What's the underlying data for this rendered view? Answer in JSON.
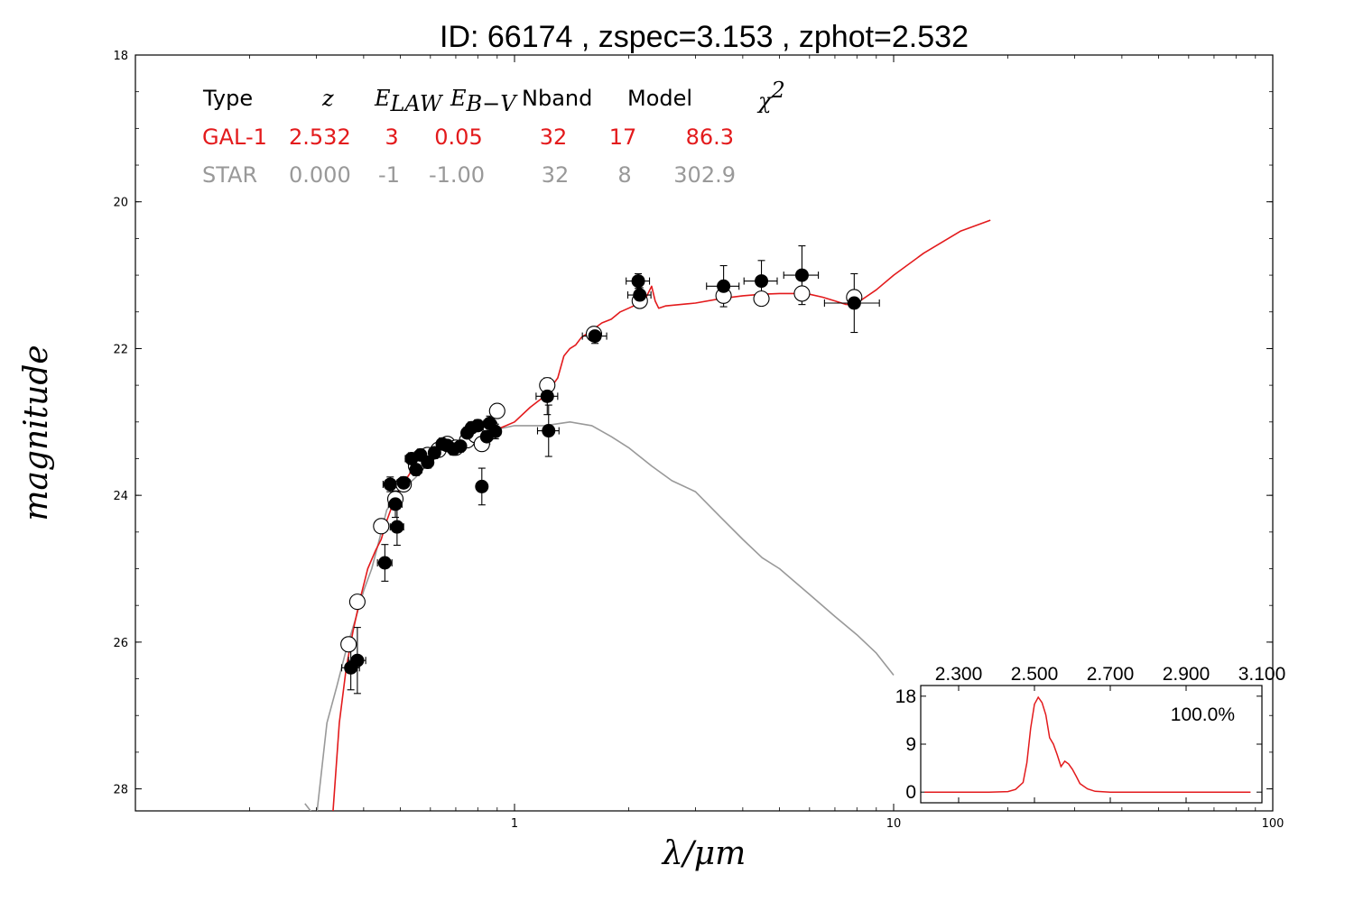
{
  "title": "ID:  66174 , zspec=3.153 , zphot=2.532",
  "colors": {
    "gal": "#e31a1c",
    "star": "#999999",
    "axis": "#000000"
  },
  "legend": {
    "headers": {
      "type": "Type",
      "z": "z",
      "elaw": "E",
      "elaw_sub": "LAW",
      "ebv": "E",
      "ebv_sub": "B−V",
      "nband": "Nband",
      "model": "Model",
      "chi": "χ",
      "chi_sup": "2"
    },
    "rows": [
      {
        "type": "GAL-1",
        "z": "2.532",
        "elaw": "3",
        "ebv": "0.05",
        "nband": "32",
        "model": "17",
        "chi2": "86.3",
        "color": "#e31a1c"
      },
      {
        "type": "STAR",
        "z": "0.000",
        "elaw": "-1",
        "ebv": "-1.00",
        "nband": "32",
        "model": "8",
        "chi2": "302.9",
        "color": "#999999"
      }
    ]
  },
  "chart_data": [
    {
      "type": "scatter",
      "title": "ID:  66174 , zspec=3.153 , zphot=2.532",
      "xlabel": "λ/μm",
      "ylabel": "magnitude",
      "xscale": "log",
      "xlim": [
        0.1,
        100
      ],
      "ylim": [
        28.3,
        18
      ],
      "y_inverted": true,
      "xticks": [
        1,
        10,
        100
      ],
      "xtick_labels": [
        "1",
        "10",
        "100"
      ],
      "yticks": [
        18,
        20,
        22,
        24,
        26,
        28
      ],
      "ytick_labels": [
        "18",
        "20",
        "22",
        "24",
        "26",
        "28"
      ],
      "series": [
        {
          "name": "GAL-1",
          "kind": "line",
          "color": "#e31a1c",
          "x": [
            0.33,
            0.345,
            0.36,
            0.375,
            0.39,
            0.41,
            0.43,
            0.445,
            0.46,
            0.475,
            0.5,
            0.53,
            0.56,
            0.6,
            0.65,
            0.7,
            0.75,
            0.8,
            0.85,
            0.9,
            0.95,
            1.0,
            1.1,
            1.2,
            1.3,
            1.35,
            1.4,
            1.45,
            1.5,
            1.55,
            1.6,
            1.7,
            1.8,
            1.9,
            2.0,
            2.1,
            2.2,
            2.3,
            2.35,
            2.4,
            2.5,
            3.0,
            3.5,
            4.0,
            4.5,
            5.0,
            5.5,
            6.0,
            6.5,
            7.0,
            7.5,
            8.0,
            9.0,
            10.0,
            12.0,
            15.0,
            18.0
          ],
          "y": [
            28.5,
            27.1,
            26.35,
            25.85,
            25.45,
            25.0,
            24.75,
            24.6,
            24.35,
            24.15,
            23.9,
            23.7,
            23.55,
            23.45,
            23.35,
            23.3,
            23.25,
            23.2,
            23.15,
            23.1,
            23.05,
            23.0,
            22.8,
            22.65,
            22.4,
            22.1,
            22.0,
            21.95,
            21.85,
            21.8,
            21.75,
            21.65,
            21.6,
            21.5,
            21.45,
            21.4,
            21.35,
            21.15,
            21.35,
            21.45,
            21.42,
            21.38,
            21.32,
            21.28,
            21.26,
            21.25,
            21.25,
            21.26,
            21.3,
            21.35,
            21.4,
            21.38,
            21.2,
            21.0,
            20.7,
            20.4,
            20.25
          ]
        },
        {
          "name": "STAR",
          "kind": "line",
          "color": "#999999",
          "x": [
            0.28,
            0.3,
            0.32,
            0.34,
            0.36,
            0.38,
            0.4,
            0.42,
            0.44,
            0.46,
            0.5,
            0.55,
            0.6,
            0.65,
            0.7,
            0.8,
            0.9,
            1.0,
            1.2,
            1.4,
            1.6,
            1.8,
            2.0,
            2.3,
            2.6,
            3.0,
            3.5,
            4.0,
            4.5,
            5.0,
            6.0,
            7.0,
            8.0,
            9.0,
            10.0
          ],
          "y": [
            28.2,
            28.4,
            27.1,
            26.6,
            26.1,
            25.7,
            25.3,
            25.0,
            24.6,
            24.2,
            23.95,
            23.75,
            23.5,
            23.4,
            23.35,
            23.3,
            23.1,
            23.05,
            23.05,
            23.0,
            23.05,
            23.2,
            23.35,
            23.6,
            23.8,
            23.95,
            24.3,
            24.6,
            24.85,
            25.0,
            25.35,
            25.65,
            25.9,
            26.15,
            26.45
          ]
        },
        {
          "name": "observed",
          "kind": "points",
          "marker": "filled-circle",
          "points": [
            {
              "x": 0.37,
              "y": 26.35,
              "yerr": 0.3,
              "xerr": 0.02
            },
            {
              "x": 0.385,
              "y": 26.25,
              "yerr": 0.45,
              "xerr": 0.02
            },
            {
              "x": 0.455,
              "y": 24.92,
              "yerr": 0.25,
              "xerr": 0.02
            },
            {
              "x": 0.47,
              "y": 23.85,
              "yerr": 0.1,
              "xerr": 0.02
            },
            {
              "x": 0.485,
              "y": 24.12,
              "yerr": 0.18,
              "xerr": 0.02
            },
            {
              "x": 0.49,
              "y": 24.43,
              "yerr": 0.25,
              "xerr": 0.02
            },
            {
              "x": 0.51,
              "y": 23.83,
              "yerr": 0.08,
              "xerr": 0.02
            },
            {
              "x": 0.535,
              "y": 23.5,
              "yerr": 0.08,
              "xerr": 0.02
            },
            {
              "x": 0.55,
              "y": 23.65,
              "yerr": 0.08,
              "xerr": 0.02
            },
            {
              "x": 0.565,
              "y": 23.45,
              "yerr": 0.08,
              "xerr": 0.02
            },
            {
              "x": 0.59,
              "y": 23.55,
              "yerr": 0.08,
              "xerr": 0.02
            },
            {
              "x": 0.615,
              "y": 23.42,
              "yerr": 0.08,
              "xerr": 0.02
            },
            {
              "x": 0.645,
              "y": 23.3,
              "yerr": 0.08,
              "xerr": 0.02
            },
            {
              "x": 0.665,
              "y": 23.32,
              "yerr": 0.08,
              "xerr": 0.02
            },
            {
              "x": 0.69,
              "y": 23.37,
              "yerr": 0.08,
              "xerr": 0.02
            },
            {
              "x": 0.72,
              "y": 23.33,
              "yerr": 0.08,
              "xerr": 0.02
            },
            {
              "x": 0.75,
              "y": 23.15,
              "yerr": 0.08,
              "xerr": 0.02
            },
            {
              "x": 0.77,
              "y": 23.08,
              "yerr": 0.08,
              "xerr": 0.02
            },
            {
              "x": 0.8,
              "y": 23.05,
              "yerr": 0.08,
              "xerr": 0.02
            },
            {
              "x": 0.82,
              "y": 23.88,
              "yerr": 0.25,
              "xerr": 0.02
            },
            {
              "x": 0.845,
              "y": 23.2,
              "yerr": 0.1,
              "xerr": 0.03
            },
            {
              "x": 0.86,
              "y": 23.02,
              "yerr": 0.1,
              "xerr": 0.03
            },
            {
              "x": 0.89,
              "y": 23.13,
              "yerr": 0.1,
              "xerr": 0.03
            },
            {
              "x": 1.22,
              "y": 22.65,
              "yerr": 0.25,
              "xerr": 0.08
            },
            {
              "x": 1.23,
              "y": 23.12,
              "yerr": 0.35,
              "xerr": 0.08
            },
            {
              "x": 1.63,
              "y": 21.83,
              "yerr": 0.1,
              "xerr": 0.12
            },
            {
              "x": 2.12,
              "y": 21.08,
              "yerr": 0.1,
              "xerr": 0.15
            },
            {
              "x": 2.14,
              "y": 21.27,
              "yerr": 0.1,
              "xerr": 0.15
            },
            {
              "x": 3.56,
              "y": 21.15,
              "yerr": 0.28,
              "xerr": 0.35
            },
            {
              "x": 4.48,
              "y": 21.08,
              "yerr": 0.28,
              "xerr": 0.45
            },
            {
              "x": 5.73,
              "y": 21.0,
              "yerr": 0.4,
              "xerr": 0.6
            },
            {
              "x": 7.87,
              "y": 21.38,
              "yerr": 0.4,
              "xerr": 1.3
            }
          ]
        },
        {
          "name": "model",
          "kind": "points",
          "marker": "open-circle",
          "points": [
            {
              "x": 0.365,
              "y": 26.03
            },
            {
              "x": 0.385,
              "y": 25.45
            },
            {
              "x": 0.445,
              "y": 24.42
            },
            {
              "x": 0.485,
              "y": 24.05
            },
            {
              "x": 0.51,
              "y": 23.85
            },
            {
              "x": 0.55,
              "y": 23.6
            },
            {
              "x": 0.59,
              "y": 23.45
            },
            {
              "x": 0.63,
              "y": 23.38
            },
            {
              "x": 0.665,
              "y": 23.3
            },
            {
              "x": 0.7,
              "y": 23.35
            },
            {
              "x": 0.75,
              "y": 23.25
            },
            {
              "x": 0.79,
              "y": 23.18
            },
            {
              "x": 0.82,
              "y": 23.3
            },
            {
              "x": 0.86,
              "y": 23.05
            },
            {
              "x": 0.9,
              "y": 22.85
            },
            {
              "x": 1.22,
              "y": 22.5
            },
            {
              "x": 1.62,
              "y": 21.8
            },
            {
              "x": 2.14,
              "y": 21.35
            },
            {
              "x": 3.56,
              "y": 21.28
            },
            {
              "x": 4.48,
              "y": 21.32
            },
            {
              "x": 5.73,
              "y": 21.25
            },
            {
              "x": 7.87,
              "y": 21.3
            }
          ]
        }
      ]
    },
    {
      "type": "line",
      "kind": "inset",
      "xlabel": "",
      "ylabel": "",
      "xlim": [
        2.2,
        3.1
      ],
      "ylim": [
        -2,
        20
      ],
      "xticks": [
        2.3,
        2.5,
        2.7,
        2.9,
        3.1
      ],
      "xtick_labels": [
        "2.300",
        "2.500",
        "2.700",
        "2.900",
        "3.100"
      ],
      "yticks": [
        0,
        9,
        18
      ],
      "ytick_labels": [
        "0",
        "9",
        "18"
      ],
      "annotation": "100.0%",
      "series": [
        {
          "color": "#e31a1c",
          "x": [
            2.21,
            2.32,
            2.38,
            2.43,
            2.45,
            2.47,
            2.48,
            2.49,
            2.5,
            2.51,
            2.52,
            2.53,
            2.54,
            2.55,
            2.56,
            2.57,
            2.58,
            2.59,
            2.6,
            2.61,
            2.62,
            2.64,
            2.66,
            2.7,
            3.0,
            3.07
          ],
          "y": [
            0,
            0,
            0,
            0.1,
            0.5,
            1.8,
            5.5,
            12.0,
            16.5,
            17.8,
            16.8,
            14.5,
            10.2,
            9.0,
            7.0,
            4.8,
            5.8,
            5.3,
            4.3,
            3.0,
            1.6,
            0.6,
            0.15,
            0,
            0,
            0
          ]
        }
      ]
    }
  ]
}
